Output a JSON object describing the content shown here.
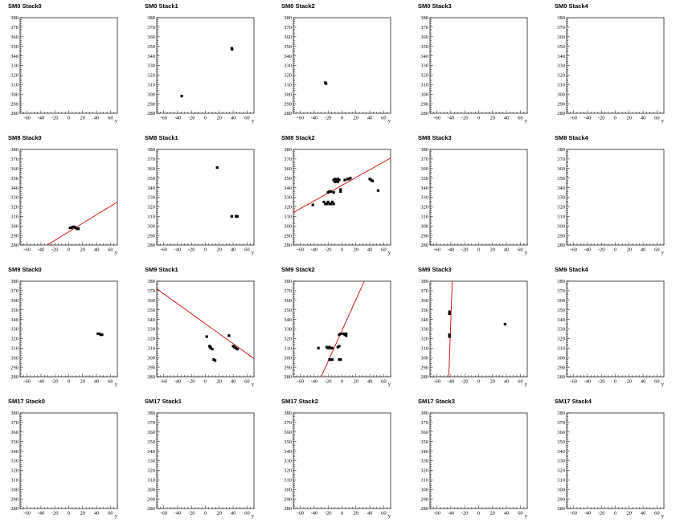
{
  "x_axis_title": "y",
  "chart_data": [
    {
      "type": "scatter",
      "title": "SM0 Stack0",
      "xlabel": "y",
      "ylabel": "",
      "xlim": [
        -70,
        70
      ],
      "ylim": [
        280,
        380
      ],
      "points": [],
      "fit": null
    },
    {
      "type": "scatter",
      "title": "SM0 Stack1",
      "xlabel": "y",
      "ylabel": "",
      "xlim": [
        -70,
        70
      ],
      "ylim": [
        280,
        380
      ],
      "points": [
        [
          38,
          348
        ],
        [
          38.5,
          347
        ],
        [
          -34,
          298
        ]
      ],
      "fit": null
    },
    {
      "type": "scatter",
      "title": "SM0 Stack2",
      "xlabel": "y",
      "ylabel": "",
      "xlim": [
        -70,
        70
      ],
      "ylim": [
        280,
        380
      ],
      "points": [
        [
          -24,
          312
        ],
        [
          -23,
          311
        ]
      ],
      "fit": null
    },
    {
      "type": "scatter",
      "title": "SM0 Stack3",
      "xlabel": "y",
      "ylabel": "",
      "xlim": [
        -70,
        70
      ],
      "ylim": [
        280,
        380
      ],
      "points": [],
      "fit": null
    },
    {
      "type": "scatter",
      "title": "SM0 Stack4",
      "xlabel": "y",
      "ylabel": "",
      "xlim": [
        -70,
        70
      ],
      "ylim": [
        280,
        380
      ],
      "points": [],
      "fit": null
    },
    {
      "type": "scatter",
      "title": "SM8 Stack0",
      "xlabel": "y",
      "ylabel": "",
      "xlim": [
        -70,
        70
      ],
      "ylim": [
        280,
        380
      ],
      "points": [
        [
          2,
          298
        ],
        [
          4,
          298
        ],
        [
          6,
          299
        ],
        [
          8,
          299
        ],
        [
          10,
          298
        ],
        [
          12,
          297
        ],
        [
          14,
          297
        ]
      ],
      "fit": [
        [
          -31,
          280
        ],
        [
          70,
          325
        ]
      ]
    },
    {
      "type": "scatter",
      "title": "SM8 Stack1",
      "xlabel": "y",
      "ylabel": "",
      "xlim": [
        -70,
        70
      ],
      "ylim": [
        280,
        380
      ],
      "points": [
        [
          17,
          361
        ],
        [
          38,
          310
        ],
        [
          44,
          310
        ],
        [
          46,
          310
        ]
      ],
      "fit": null
    },
    {
      "type": "scatter",
      "title": "SM8 Stack2",
      "xlabel": "y",
      "ylabel": "",
      "xlim": [
        -70,
        70
      ],
      "ylim": [
        280,
        380
      ],
      "points": [
        [
          -42,
          322
        ],
        [
          -26,
          325
        ],
        [
          -24,
          323
        ],
        [
          -22,
          323
        ],
        [
          -20,
          325
        ],
        [
          -18,
          323
        ],
        [
          -16,
          323
        ],
        [
          -14,
          325
        ],
        [
          -12,
          323
        ],
        [
          -20,
          335
        ],
        [
          -18,
          336
        ],
        [
          -16,
          336
        ],
        [
          -12,
          335
        ],
        [
          -12,
          348
        ],
        [
          -10,
          349
        ],
        [
          -8,
          348
        ],
        [
          -6,
          349
        ],
        [
          -4,
          348
        ],
        [
          -10,
          346
        ],
        [
          -6,
          346
        ],
        [
          -2,
          336
        ],
        [
          -2,
          338
        ],
        [
          4,
          348
        ],
        [
          8,
          349
        ],
        [
          10,
          349
        ],
        [
          12,
          350
        ],
        [
          40,
          349
        ],
        [
          42,
          348
        ],
        [
          44,
          347
        ],
        [
          52,
          337
        ]
      ],
      "fit": [
        [
          -70,
          314
        ],
        [
          70,
          371
        ]
      ]
    },
    {
      "type": "scatter",
      "title": "SM8 Stack3",
      "xlabel": "y",
      "ylabel": "",
      "xlim": [
        -70,
        70
      ],
      "ylim": [
        280,
        380
      ],
      "points": [],
      "fit": null
    },
    {
      "type": "scatter",
      "title": "SM8 Stack4",
      "xlabel": "y",
      "ylabel": "",
      "xlim": [
        -70,
        70
      ],
      "ylim": [
        280,
        380
      ],
      "points": [],
      "fit": null
    },
    {
      "type": "scatter",
      "title": "SM9 Stack0",
      "xlabel": "y",
      "ylabel": "",
      "xlim": [
        -70,
        70
      ],
      "ylim": [
        280,
        380
      ],
      "points": [
        [
          42,
          325
        ],
        [
          44,
          325
        ],
        [
          46,
          324
        ],
        [
          48,
          324
        ]
      ],
      "fit": null
    },
    {
      "type": "scatter",
      "title": "SM9 Stack1",
      "xlabel": "y",
      "ylabel": "",
      "xlim": [
        -70,
        70
      ],
      "ylim": [
        280,
        380
      ],
      "points": [
        [
          2,
          322
        ],
        [
          6,
          312
        ],
        [
          7,
          311
        ],
        [
          8,
          310
        ],
        [
          10,
          309
        ],
        [
          12,
          298
        ],
        [
          14,
          297
        ],
        [
          34,
          323
        ],
        [
          40,
          312
        ],
        [
          42,
          311
        ],
        [
          44,
          310
        ],
        [
          46,
          309
        ]
      ],
      "fit": [
        [
          -70,
          372
        ],
        [
          70,
          299
        ]
      ]
    },
    {
      "type": "scatter",
      "title": "SM9 Stack2",
      "xlabel": "y",
      "ylabel": "",
      "xlim": [
        -70,
        70
      ],
      "ylim": [
        280,
        380
      ],
      "points": [
        [
          -34,
          310
        ],
        [
          -22,
          311
        ],
        [
          -20,
          310
        ],
        [
          -18,
          311
        ],
        [
          -16,
          310
        ],
        [
          -14,
          310
        ],
        [
          -18,
          298
        ],
        [
          -16,
          298
        ],
        [
          -14,
          298
        ],
        [
          -6,
          311
        ],
        [
          -4,
          312
        ],
        [
          -4,
          298
        ],
        [
          -2,
          298
        ],
        [
          -4,
          324
        ],
        [
          -2,
          325
        ],
        [
          2,
          325
        ],
        [
          4,
          324
        ],
        [
          6,
          323
        ],
        [
          6,
          325
        ]
      ],
      "fit": [
        [
          -30,
          280
        ],
        [
          32,
          380
        ]
      ]
    },
    {
      "type": "scatter",
      "title": "SM9 Stack3",
      "xlabel": "y",
      "ylabel": "",
      "xlim": [
        -70,
        70
      ],
      "ylim": [
        280,
        380
      ],
      "points": [
        [
          -42,
          348
        ],
        [
          -42,
          346
        ],
        [
          -42,
          324
        ],
        [
          -42,
          322
        ],
        [
          38,
          335
        ]
      ],
      "fit": [
        [
          -43,
          280
        ],
        [
          -38,
          380
        ]
      ]
    },
    {
      "type": "scatter",
      "title": "SM9 Stack4",
      "xlabel": "y",
      "ylabel": "",
      "xlim": [
        -70,
        70
      ],
      "ylim": [
        280,
        380
      ],
      "points": [],
      "fit": null
    },
    {
      "type": "scatter",
      "title": "SM17 Stack0",
      "xlabel": "y",
      "ylabel": "",
      "xlim": [
        -70,
        70
      ],
      "ylim": [
        280,
        380
      ],
      "points": [],
      "fit": null
    },
    {
      "type": "scatter",
      "title": "SM17 Stack1",
      "xlabel": "y",
      "ylabel": "",
      "xlim": [
        -70,
        70
      ],
      "ylim": [
        280,
        380
      ],
      "points": [],
      "fit": null
    },
    {
      "type": "scatter",
      "title": "SM17 Stack2",
      "xlabel": "y",
      "ylabel": "",
      "xlim": [
        -70,
        70
      ],
      "ylim": [
        280,
        380
      ],
      "points": [],
      "fit": null
    },
    {
      "type": "scatter",
      "title": "SM17 Stack3",
      "xlabel": "y",
      "ylabel": "",
      "xlim": [
        -70,
        70
      ],
      "ylim": [
        280,
        380
      ],
      "points": [],
      "fit": null
    },
    {
      "type": "scatter",
      "title": "SM17 Stack4",
      "xlabel": "y",
      "ylabel": "",
      "xlim": [
        -70,
        70
      ],
      "ylim": [
        280,
        380
      ],
      "points": [],
      "fit": null
    }
  ],
  "x_ticks": [
    -60,
    -40,
    -20,
    0,
    20,
    40,
    60
  ],
  "y_ticks": [
    280,
    290,
    300,
    310,
    320,
    330,
    340,
    350,
    360,
    370,
    380
  ],
  "colors": {
    "marker": "#000000",
    "fit": "#d40000",
    "axis": "#000000",
    "background": "#ffffff"
  }
}
